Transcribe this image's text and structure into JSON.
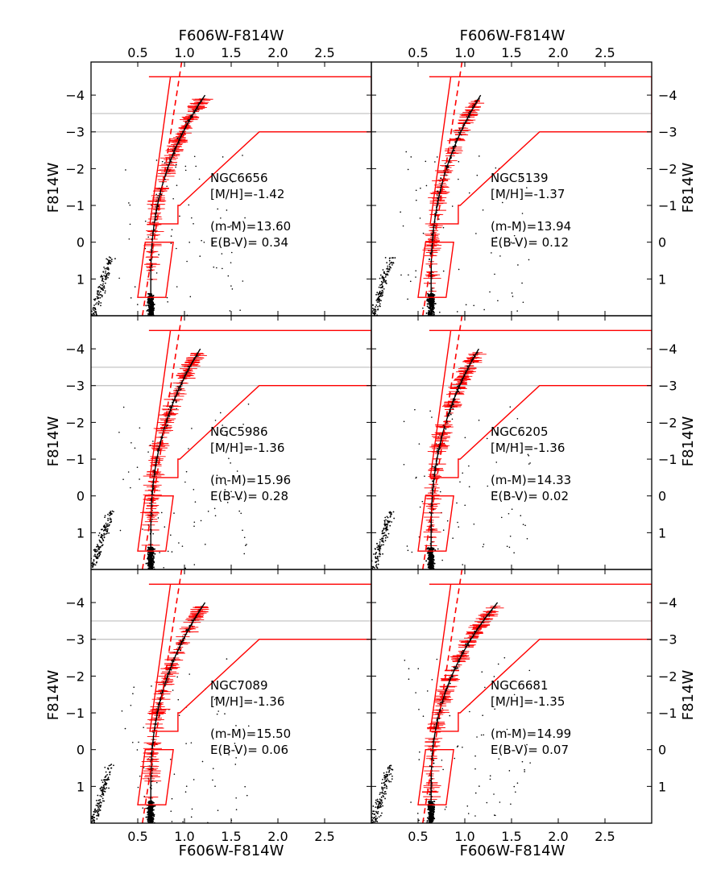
{
  "figure": {
    "top_xlabel": "F606W-F814W",
    "bottom_xlabel": "F606W-F814W",
    "ylabel": "F814W"
  },
  "colors": {
    "frame": "#000000",
    "red": "#ff0000",
    "gray": "#bfbfbf",
    "star": "#000000",
    "background": "#ffffff"
  },
  "chart_data": {
    "type": "scatter",
    "layout": "3 rows x 2 columns, shared axes",
    "xlim": [
      0.0,
      3.0
    ],
    "ylim": [
      2.0,
      -4.9
    ],
    "x_ticks": [
      0.5,
      1.0,
      1.5,
      2.0,
      2.5
    ],
    "x_tick_labels": [
      "0.5",
      "1.0",
      "1.5",
      "2.0",
      "2.5"
    ],
    "y_ticks": [
      -4,
      -3,
      -2,
      -1,
      0,
      1
    ],
    "y_tick_labels": [
      "−4",
      "−3",
      "−2",
      "−1",
      "0",
      "1"
    ],
    "gray_lines_y": [
      -3.5,
      -3.0
    ],
    "selection_box_upper": [
      [
        0.62,
        -4.5
      ],
      [
        3.0,
        -4.5
      ],
      [
        3.0,
        -3.0
      ],
      [
        1.8,
        -3.0
      ],
      [
        0.95,
        -1.0
      ],
      [
        0.93,
        -1.0
      ],
      [
        0.93,
        -0.5
      ],
      [
        0.63,
        -0.5
      ],
      [
        0.85,
        -4.5
      ]
    ],
    "selection_box_lower": [
      [
        0.5,
        1.5
      ],
      [
        0.8,
        1.5
      ],
      [
        0.88,
        0.0
      ],
      [
        0.58,
        0.0
      ]
    ],
    "dashed_line": [
      [
        0.55,
        2.0
      ],
      [
        0.97,
        -4.9
      ]
    ],
    "panels": [
      {
        "name": "NGC6656",
        "metallicity": "[M/H]=-1.42",
        "distance_modulus": "(m-M)=13.60",
        "reddening": "E(B-V)= 0.34",
        "rgb_tip_color": 1.22,
        "rgb_tip_mag": -4.0
      },
      {
        "name": "NGC5139",
        "metallicity": "[M/H]=-1.37",
        "distance_modulus": "(m-M)=13.94",
        "reddening": "E(B-V)= 0.12",
        "rgb_tip_color": 1.17,
        "rgb_tip_mag": -4.0
      },
      {
        "name": "NGC5986",
        "metallicity": "[M/H]=-1.36",
        "distance_modulus": "(m-M)=15.96",
        "reddening": "E(B-V)= 0.28",
        "rgb_tip_color": 1.17,
        "rgb_tip_mag": -4.0
      },
      {
        "name": "NGC6205",
        "metallicity": "[M/H]=-1.36",
        "distance_modulus": "(m-M)=14.33",
        "reddening": "E(B-V)= 0.02",
        "rgb_tip_color": 1.15,
        "rgb_tip_mag": -4.0
      },
      {
        "name": "NGC7089",
        "metallicity": "[M/H]=-1.36",
        "distance_modulus": "(m-M)=15.50",
        "reddening": "E(B-V)= 0.06",
        "rgb_tip_color": 1.22,
        "rgb_tip_mag": -4.0
      },
      {
        "name": "NGC6681",
        "metallicity": "[M/H]=-1.35",
        "distance_modulus": "(m-M)=14.99",
        "reddening": "E(B-V)= 0.07",
        "rgb_tip_color": 1.35,
        "rgb_tip_mag": -4.0
      }
    ]
  }
}
